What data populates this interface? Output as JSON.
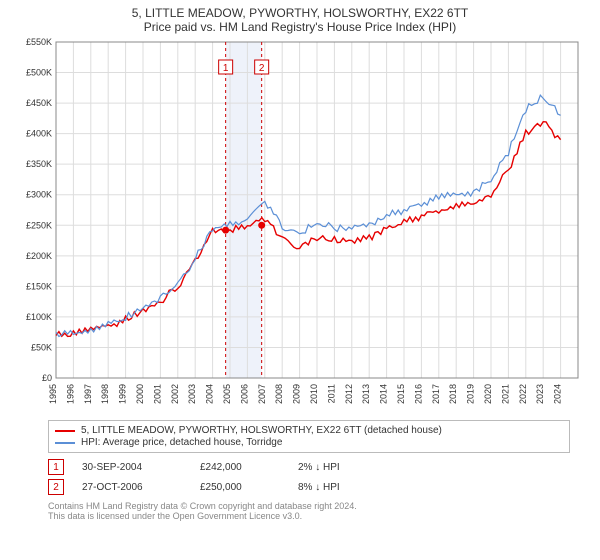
{
  "title_line1": "5, LITTLE MEADOW, PYWORTHY, HOLSWORTHY, EX22 6TT",
  "title_line2": "Price paid vs. HM Land Registry's House Price Index (HPI)",
  "chart": {
    "type": "line",
    "background_color": "#ffffff",
    "grid_color": "#dddddd",
    "plot_border_color": "#888888",
    "x_years": [
      1995,
      1996,
      1997,
      1998,
      1999,
      2000,
      2001,
      2002,
      2003,
      2004,
      2005,
      2006,
      2007,
      2008,
      2009,
      2010,
      2011,
      2012,
      2013,
      2014,
      2015,
      2016,
      2017,
      2018,
      2019,
      2020,
      2021,
      2022,
      2023,
      2024
    ],
    "ylim": [
      0,
      550000
    ],
    "ytick_step": 50000,
    "ytick_labels": [
      "£0",
      "£50K",
      "£100K",
      "£150K",
      "£200K",
      "£250K",
      "£300K",
      "£350K",
      "£400K",
      "£450K",
      "£500K",
      "£550K"
    ],
    "xtick_label_rotation": -90,
    "xtick_fontsize": 9,
    "ytick_fontsize": 9,
    "series": [
      {
        "name": "5, LITTLE MEADOW, PYWORTHY, HOLSWORTHY, EX22 6TT (detached house)",
        "color": "#e60000",
        "line_width": 1.4,
        "data": [
          [
            1995,
            70000
          ],
          [
            1996,
            72000
          ],
          [
            1997,
            78000
          ],
          [
            1998,
            85000
          ],
          [
            1999,
            95000
          ],
          [
            2000,
            110000
          ],
          [
            2001,
            125000
          ],
          [
            2002,
            150000
          ],
          [
            2003,
            190000
          ],
          [
            2004,
            242000
          ],
          [
            2005,
            240000
          ],
          [
            2006,
            250000
          ],
          [
            2007,
            260000
          ],
          [
            2008,
            230000
          ],
          [
            2009,
            215000
          ],
          [
            2010,
            230000
          ],
          [
            2011,
            225000
          ],
          [
            2012,
            225000
          ],
          [
            2013,
            230000
          ],
          [
            2014,
            245000
          ],
          [
            2015,
            255000
          ],
          [
            2016,
            265000
          ],
          [
            2017,
            275000
          ],
          [
            2018,
            280000
          ],
          [
            2019,
            285000
          ],
          [
            2020,
            300000
          ],
          [
            2021,
            340000
          ],
          [
            2022,
            400000
          ],
          [
            2023,
            420000
          ],
          [
            2024,
            390000
          ]
        ]
      },
      {
        "name": "HPI: Average price, detached house, Torridge",
        "color": "#5b8fd6",
        "line_width": 1.2,
        "data": [
          [
            1995,
            72000
          ],
          [
            1996,
            74000
          ],
          [
            1997,
            80000
          ],
          [
            1998,
            88000
          ],
          [
            1999,
            98000
          ],
          [
            2000,
            115000
          ],
          [
            2001,
            130000
          ],
          [
            2002,
            155000
          ],
          [
            2003,
            195000
          ],
          [
            2004,
            245000
          ],
          [
            2005,
            250000
          ],
          [
            2006,
            260000
          ],
          [
            2007,
            290000
          ],
          [
            2008,
            250000
          ],
          [
            2009,
            235000
          ],
          [
            2010,
            255000
          ],
          [
            2011,
            245000
          ],
          [
            2012,
            245000
          ],
          [
            2013,
            250000
          ],
          [
            2014,
            265000
          ],
          [
            2015,
            275000
          ],
          [
            2016,
            285000
          ],
          [
            2017,
            295000
          ],
          [
            2018,
            300000
          ],
          [
            2019,
            305000
          ],
          [
            2020,
            325000
          ],
          [
            2021,
            370000
          ],
          [
            2022,
            440000
          ],
          [
            2023,
            460000
          ],
          [
            2024,
            430000
          ]
        ]
      }
    ],
    "marker_lines": [
      {
        "label": "1",
        "year": 2004.75,
        "color": "#cc0000",
        "box_border": "#cc0000"
      },
      {
        "label": "2",
        "year": 2006.82,
        "color": "#cc0000",
        "box_border": "#cc0000"
      }
    ],
    "highlight_band": {
      "from_year": 2004.75,
      "to_year": 2006.82,
      "fill": "#eef2fa"
    },
    "sale_points": [
      {
        "year": 2004.75,
        "value": 242000,
        "color": "#e60000",
        "radius": 3.5
      },
      {
        "year": 2006.82,
        "value": 250000,
        "color": "#e60000",
        "radius": 3.5
      }
    ]
  },
  "legend": {
    "items": [
      {
        "color": "#e60000",
        "label": "5, LITTLE MEADOW, PYWORTHY, HOLSWORTHY, EX22 6TT (detached house)"
      },
      {
        "color": "#5b8fd6",
        "label": "HPI: Average price, detached house, Torridge"
      }
    ]
  },
  "sales": [
    {
      "marker": "1",
      "date": "30-SEP-2004",
      "price": "£242,000",
      "pct": "2% ↓ HPI"
    },
    {
      "marker": "2",
      "date": "27-OCT-2006",
      "price": "£250,000",
      "pct": "8% ↓ HPI"
    }
  ],
  "footer_line1": "Contains HM Land Registry data © Crown copyright and database right 2024.",
  "footer_line2": "This data is licensed under the Open Government Licence v3.0."
}
